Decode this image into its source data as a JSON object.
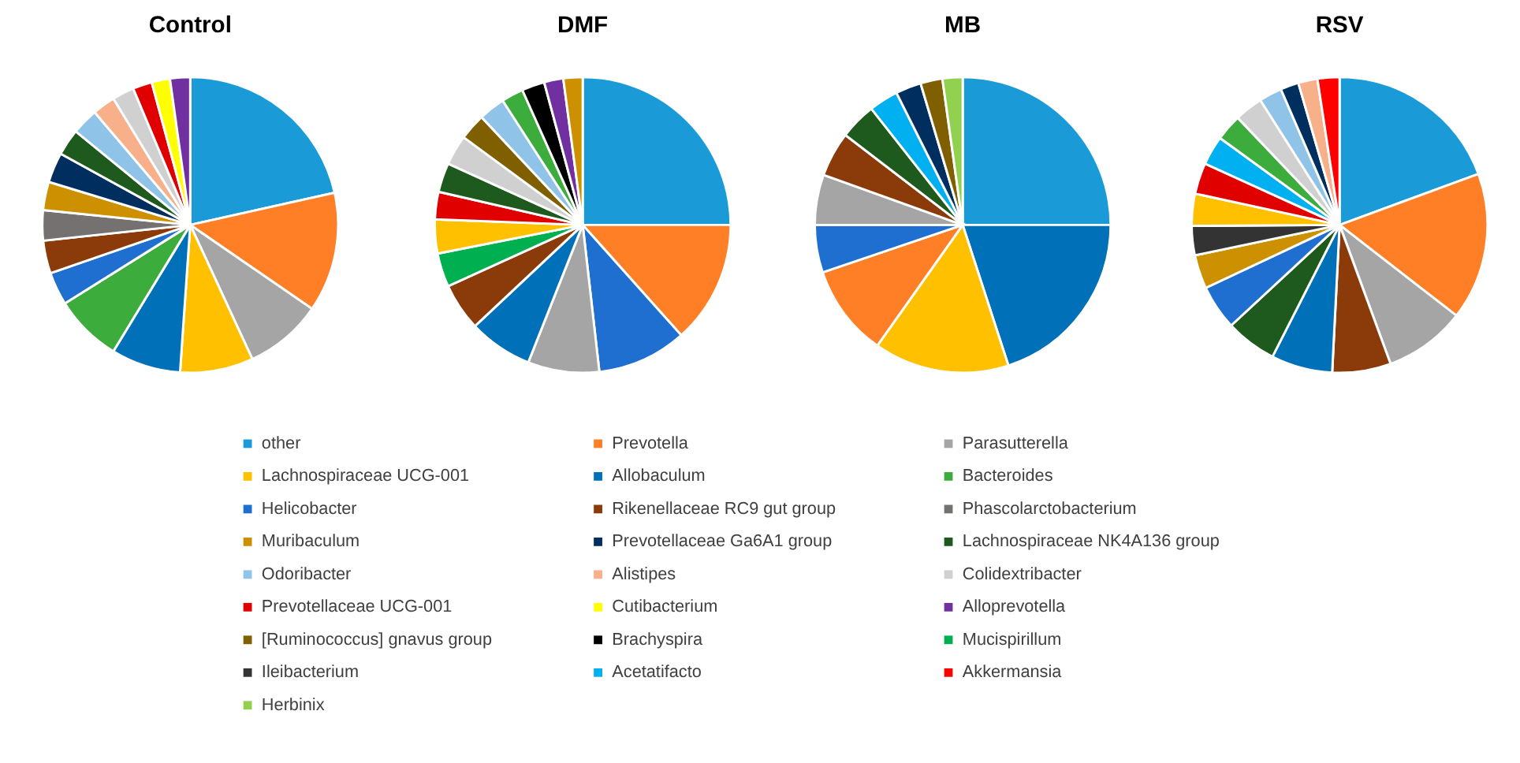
{
  "chart_data": [
    {
      "type": "pie",
      "title": "Control",
      "categories": [
        null,
        null,
        null,
        null,
        null,
        null,
        null,
        null,
        null,
        null,
        null,
        null,
        null,
        null,
        null,
        null,
        null,
        null
      ],
      "values": [
        21.5,
        13.1,
        8.5,
        8.0,
        7.6,
        7.4,
        3.6,
        3.6,
        3.3,
        3.1,
        3.3,
        2.9,
        2.9,
        2.5,
        2.4,
        2.1,
        2.0,
        2.2
      ],
      "colors": [
        "#1a9bd7",
        "#ff7f27",
        "#a5a5a5",
        "#ffc000",
        "#0070b8",
        "#3cac3c",
        "#1f6fd0",
        "#8b3a0a",
        "#767171",
        "#cc9000",
        "#002f5f",
        "#1e5a1e",
        "#8fc3e8",
        "#f8b08a",
        "#d0d0d0",
        "#e00000",
        "#ffff00",
        "#7030a0"
      ]
    },
    {
      "type": "pie",
      "title": "DMF",
      "categories": [
        null,
        null,
        null,
        null,
        null,
        null,
        null,
        null,
        null,
        null,
        null,
        null,
        null,
        null,
        null,
        null,
        null
      ],
      "values": [
        25.0,
        13.4,
        9.8,
        7.8,
        7.0,
        5.2,
        3.7,
        3.7,
        3.0,
        3.2,
        3.3,
        2.9,
        2.9,
        2.4,
        2.5,
        2.1,
        2.1
      ],
      "colors": [
        "#1a9bd7",
        "#ff7f27",
        "#1f6fd0",
        "#a5a5a5",
        "#0070b8",
        "#8b3a0a",
        "#00b050",
        "#ffc000",
        "#e00000",
        "#1e5a1e",
        "#d0d0d0",
        "#7f5f00",
        "#8fc3e8",
        "#3cac3c",
        "#000000",
        "#7030a0",
        "#cc9000"
      ]
    },
    {
      "type": "pie",
      "title": "MB",
      "categories": [
        null,
        null,
        null,
        null,
        null,
        null,
        null,
        null,
        null,
        null,
        null,
        null
      ],
      "values": [
        25.0,
        20.0,
        14.8,
        10.0,
        5.2,
        5.5,
        4.9,
        4.0,
        3.2,
        2.8,
        2.4,
        2.2
      ],
      "colors": [
        "#1a9bd7",
        "#0070b8",
        "#ffc000",
        "#ff7f27",
        "#1f6fd0",
        "#a5a5a5",
        "#8b3a0a",
        "#1e5a1e",
        "#00b0f0",
        "#002f5f",
        "#7f5f00",
        "#92d050"
      ]
    },
    {
      "type": "pie",
      "title": "RSV",
      "categories": [
        null,
        null,
        null,
        null,
        null,
        null,
        null,
        null,
        null,
        null,
        null,
        null,
        null,
        null,
        null,
        null,
        null,
        null
      ],
      "values": [
        19.4,
        16.1,
        8.9,
        6.4,
        6.7,
        5.6,
        4.9,
        3.7,
        3.2,
        3.5,
        3.4,
        3.2,
        2.9,
        3.1,
        2.5,
        2.0,
        2.1,
        2.4
      ],
      "colors": [
        "#1a9bd7",
        "#ff7f27",
        "#a5a5a5",
        "#8b3a0a",
        "#0070b8",
        "#1e5a1e",
        "#1f6fd0",
        "#cc9000",
        "#333333",
        "#ffc000",
        "#e00000",
        "#00b0f0",
        "#3cac3c",
        "#d0d0d0",
        "#8fc3e8",
        "#002f5f",
        "#f8b08a",
        "#ff0000"
      ]
    },
    {
      "type": "other",
      "categories": [
        "other",
        "Prevotella",
        "Parasutterella",
        "Lachnospiraceae UCG-001",
        "Allobaculum",
        "Bacteroides",
        "Helicobacter",
        "Rikenellaceae RC9 gut group",
        "Phascolarctobacterium",
        "Muribaculum",
        "Prevotellaceae Ga6A1 group",
        "Lachnospiraceae NK4A136 group",
        "Odoribacter",
        "Alistipes",
        "Colidextribacter",
        "Prevotellaceae UCG-001",
        "Cutibacterium",
        "Alloprevotella",
        "[Ruminococcus] gnavus group",
        "Brachyspira",
        "Mucispirillum",
        "Ileibacterium",
        "Acetatifacto",
        "Akkermansia",
        "Herbinix"
      ],
      "colors": [
        "#1a9bd7",
        "#ff7f27",
        "#a5a5a5",
        "#ffc000",
        "#0070b8",
        "#3cac3c",
        "#1f6fd0",
        "#8b3a0a",
        "#767171",
        "#cc9000",
        "#002f5f",
        "#1e5a1e",
        "#8fc3e8",
        "#f8b08a",
        "#d0d0d0",
        "#e00000",
        "#ffff00",
        "#7030a0",
        "#7f5f00",
        "#000000",
        "#00b050",
        "#333333",
        "#00b0f0",
        "#ff0000",
        "#92d050"
      ]
    }
  ]
}
